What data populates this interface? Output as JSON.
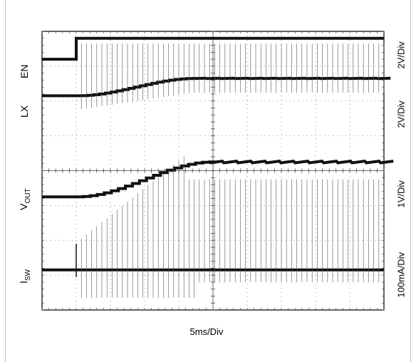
{
  "chart_data": {
    "type": "line",
    "x_scale": "5ms/Div",
    "divisions": {
      "x": 10,
      "y": 8
    },
    "channels": [
      {
        "name": "EN",
        "scale": "2V/Div",
        "segments_div": [
          [
            0,
            0.8,
            0.8,
            0.8
          ],
          [
            1.0,
            0.8,
            1.0,
            0.2
          ],
          [
            1.0,
            0.2,
            10,
            0.2
          ]
        ]
      },
      {
        "name": "LX",
        "scale": "2V/Div",
        "ramp_start_div": [
          1.0,
          1.85
        ],
        "ramp_end_div": [
          4.4,
          1.35
        ],
        "baseline_div": 1.85,
        "settled_div": 1.35
      },
      {
        "name": "VOUT",
        "scale": "1V/Div",
        "ramp_start_div": [
          1.0,
          4.75
        ],
        "ramp_end_div": [
          4.9,
          3.75
        ],
        "baseline_div": 4.75,
        "settled_div": 3.75
      },
      {
        "name": "ISW",
        "scale": "100mA/Div",
        "baseline_div": 6.85
      }
    ]
  },
  "labels": {
    "en": "EN",
    "lx": "LX",
    "vout_main": "V",
    "vout_sub": "OUT",
    "isw_main": "I",
    "isw_sub": "SW",
    "scale_en": "2V/Div",
    "scale_lx": "2V/Div",
    "scale_vout": "1V/Div",
    "scale_isw": "100mA/Div",
    "xlabel": "5ms/Div"
  }
}
